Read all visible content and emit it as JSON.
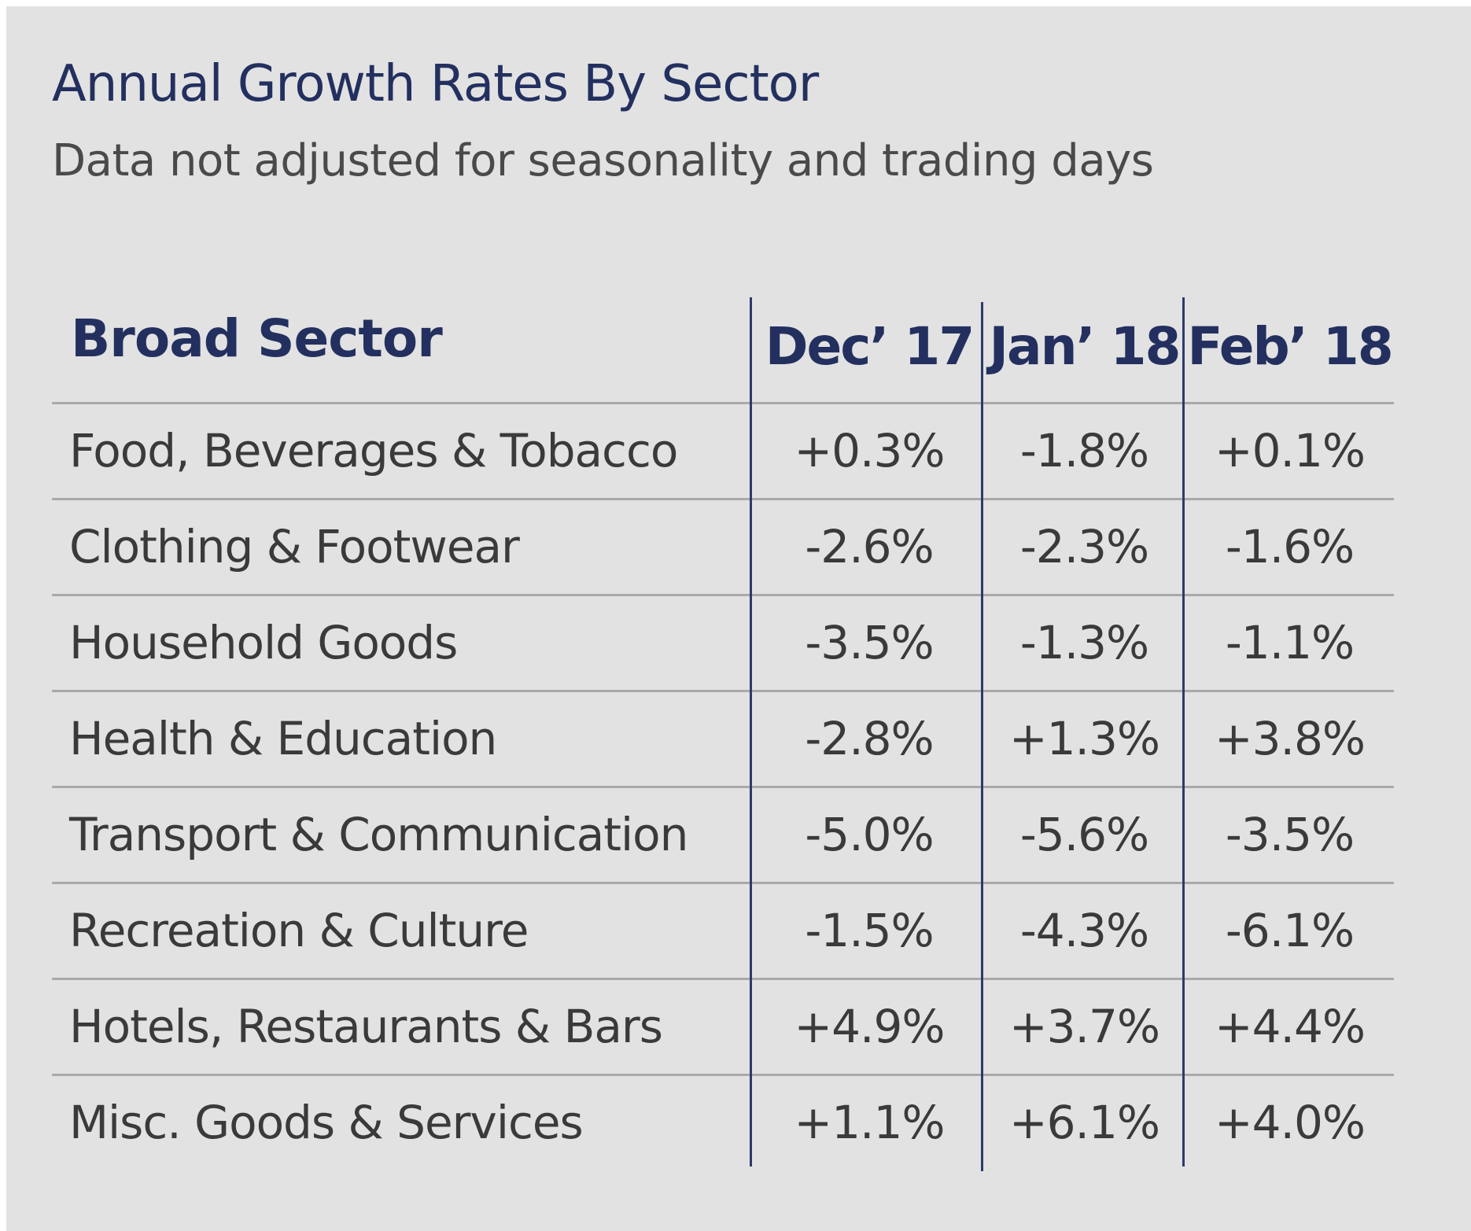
{
  "chart_data": {
    "type": "table",
    "title": "Annual Growth Rates By Sector",
    "subtitle": "Data not adjusted for seasonality and trading days",
    "columns": [
      "Broad Sector",
      "Dec’ 17",
      "Jan’ 18",
      "Feb’ 18"
    ],
    "rows": [
      {
        "sector": "Food, Beverages & Tobacco",
        "values": [
          "+0.3%",
          "-1.8%",
          "+0.1%"
        ]
      },
      {
        "sector": "Clothing & Footwear",
        "values": [
          "-2.6%",
          "-2.3%",
          "-1.6%"
        ]
      },
      {
        "sector": "Household Goods",
        "values": [
          "-3.5%",
          "-1.3%",
          "-1.1%"
        ]
      },
      {
        "sector": "Health & Education",
        "values": [
          "-2.8%",
          "+1.3%",
          "+3.8%"
        ]
      },
      {
        "sector": "Transport & Communication",
        "values": [
          "-5.0%",
          "-5.6%",
          "-3.5%"
        ]
      },
      {
        "sector": "Recreation & Culture",
        "values": [
          "-1.5%",
          "-4.3%",
          "-6.1%"
        ]
      },
      {
        "sector": "Hotels, Restaurants & Bars",
        "values": [
          "+4.9%",
          "+3.7%",
          "+4.4%"
        ]
      },
      {
        "sector": "Misc. Goods & Services",
        "values": [
          "+1.1%",
          "+6.1%",
          "+4.0%"
        ]
      }
    ]
  },
  "colors": {
    "background": "#e2e2e2",
    "heading": "#23305f",
    "text": "#3a3a3a",
    "rule": "#a9a9a9",
    "divider": "#2d3a6b"
  }
}
